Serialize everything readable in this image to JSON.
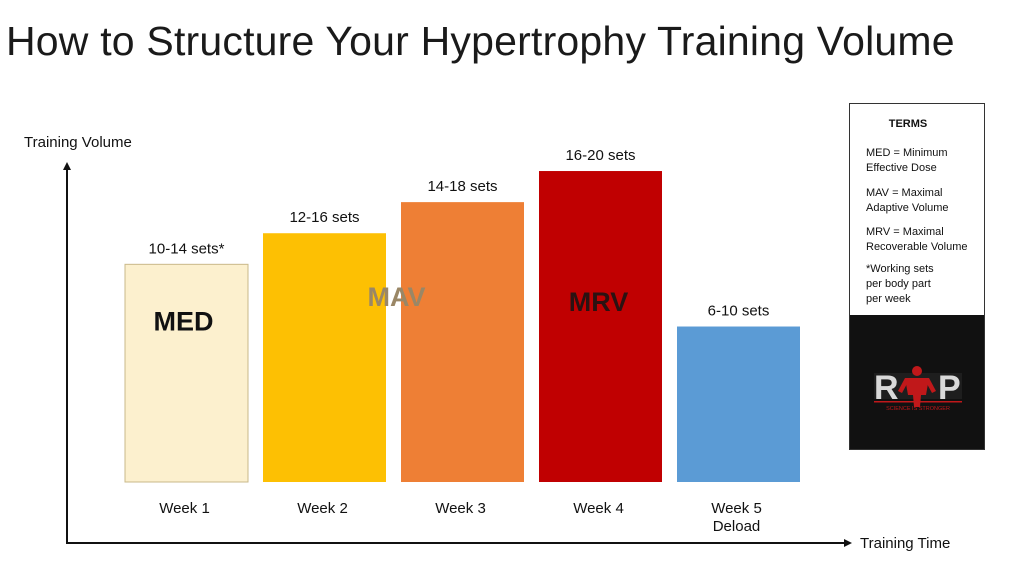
{
  "title": "How to Structure Your Hypertrophy Training Volume",
  "chart_data": {
    "type": "bar",
    "categories": [
      "Week 1",
      "Week 2",
      "Week 3",
      "Week 4",
      "Week 5 Deload"
    ],
    "category_lines": [
      [
        "Week 1"
      ],
      [
        "Week 2"
      ],
      [
        "Week 3"
      ],
      [
        "Week 4"
      ],
      [
        "Week 5",
        "Deload"
      ]
    ],
    "ranges": [
      [
        10,
        14
      ],
      [
        12,
        16
      ],
      [
        14,
        18
      ],
      [
        16,
        20
      ],
      [
        6,
        10
      ]
    ],
    "bar_labels": [
      "10-14 sets*",
      "12-16 sets",
      "14-18 sets",
      "16-20 sets",
      "6-10 sets"
    ],
    "colors": [
      "#FCF0CE",
      "#FDC003",
      "#EE7F35",
      "#C00001",
      "#5B9BD5"
    ],
    "ylabel": "Training Volume",
    "xlabel": "Training Time",
    "ylim": [
      0,
      31
    ],
    "grid": false,
    "zones": [
      {
        "label": "MED",
        "color": "#111111"
      },
      {
        "label": "MAV",
        "color": "#9a8766"
      },
      {
        "label": "MRV",
        "color": "#2b1212"
      }
    ]
  },
  "terms": {
    "title": "TERMS",
    "items": [
      {
        "lines": [
          "MED = Minimum",
          "Effective Dose"
        ]
      },
      {
        "lines": [
          "MAV = Maximal",
          "Adaptive Volume"
        ]
      },
      {
        "lines": [
          "MRV = Maximal",
          "Recoverable Volume"
        ]
      },
      {
        "lines": [
          "*Working sets",
          "per body part",
          "per week"
        ]
      }
    ],
    "logo": {
      "letters": [
        "R",
        "P"
      ],
      "tagline": "SCIENCE IS STRONGER",
      "colors": {
        "red": "#c0181a",
        "silver": "#d9d9d9"
      }
    }
  }
}
